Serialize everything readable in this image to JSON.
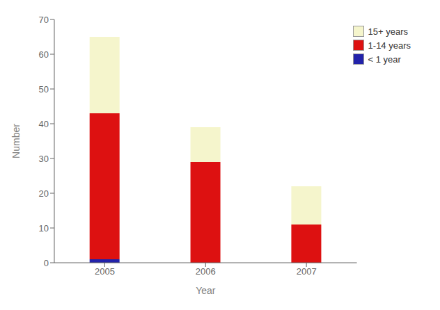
{
  "chart_data": {
    "type": "bar",
    "stacked": true,
    "categories": [
      "2005",
      "2006",
      "2007"
    ],
    "series": [
      {
        "name": "< 1 year",
        "color": "#2222aa",
        "values": [
          1,
          0,
          0
        ]
      },
      {
        "name": "1-14 years",
        "color": "#dd1111",
        "values": [
          42,
          29,
          11
        ]
      },
      {
        "name": "15+ years",
        "color": "#f5f5cc",
        "values": [
          22,
          10,
          11
        ]
      }
    ],
    "xlabel": "Year",
    "ylabel": "Number",
    "ylim": [
      0,
      70
    ],
    "yticks": [
      0,
      10,
      20,
      30,
      40,
      50,
      60,
      70
    ],
    "grid": false,
    "legend": "upper right"
  }
}
